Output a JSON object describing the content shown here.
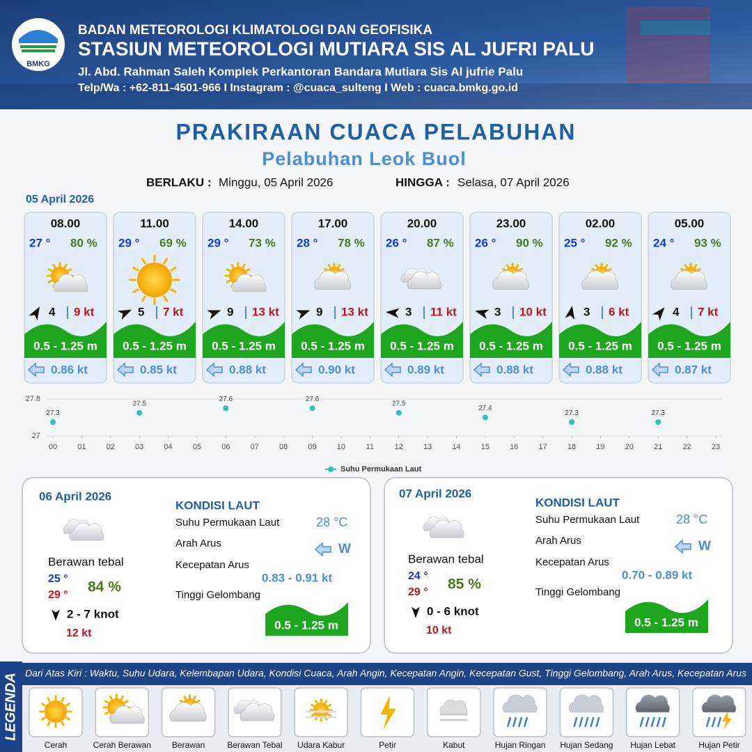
{
  "header": {
    "logo_text": "BMKG",
    "agency": "BADAN METEOROLOGI KLIMATOLOGI DAN GEOFISIKA",
    "station": "STASIUN METEOROLOGI MUTIARA SIS AL JUFRI PALU",
    "address": "Jl. Abd. Rahman Saleh Komplek Perkantoran Bandara Mutiara Sis Al jufrie Palu",
    "contact": "Telp/Wa : +62-811-4501-966  I  Instagram : @cuaca_sulteng  I  Web : cuaca.bmkg.go.id"
  },
  "title": "PRAKIRAAN CUACA PELABUHAN",
  "subtitle": "Pelabuhan Leok Buol",
  "valid": {
    "from_label": "BERLAKU :",
    "from": "Minggu, 05 April 2026",
    "until_label": "HINGGA :",
    "until": "Selasa, 07 April 2026"
  },
  "day1_date": "05 April 2026",
  "cards": [
    {
      "time": "08.00",
      "temp": "27 °",
      "humidity": "80 %",
      "wind": "4",
      "gust": "9 kt",
      "wave": "0.5 - 1.25 m",
      "current": "0.86 kt"
    },
    {
      "time": "11.00",
      "temp": "29 °",
      "humidity": "69 %",
      "wind": "5",
      "gust": "7 kt",
      "wave": "0.5 - 1.25 m",
      "current": "0.85 kt"
    },
    {
      "time": "14.00",
      "temp": "29 °",
      "humidity": "73 %",
      "wind": "9",
      "gust": "13 kt",
      "wave": "0.5 - 1.25 m",
      "current": "0.88 kt"
    },
    {
      "time": "17.00",
      "temp": "28 °",
      "humidity": "78 %",
      "wind": "9",
      "gust": "13 kt",
      "wave": "0.5 - 1.25 m",
      "current": "0.90 kt"
    },
    {
      "time": "20.00",
      "temp": "26 °",
      "humidity": "87 %",
      "wind": "3",
      "gust": "11 kt",
      "wave": "0.5 - 1.25 m",
      "current": "0.89 kt"
    },
    {
      "time": "23.00",
      "temp": "26 °",
      "humidity": "90 %",
      "wind": "3",
      "gust": "10 kt",
      "wave": "0.5 - 1.25 m",
      "current": "0.88 kt"
    },
    {
      "time": "02.00",
      "temp": "25 °",
      "humidity": "92 %",
      "wind": "3",
      "gust": "6 kt",
      "wave": "0.5 - 1.25 m",
      "current": "0.88 kt"
    },
    {
      "time": "05.00",
      "temp": "24 °",
      "humidity": "93 %",
      "wind": "4",
      "gust": "7 kt",
      "wave": "0.5 - 1.25 m",
      "current": "0.87 kt"
    }
  ],
  "chart_data": {
    "type": "scatter",
    "x": [
      0,
      3,
      6,
      9,
      12,
      15,
      18,
      21
    ],
    "series": [
      {
        "name": "Suhu Permukaan Laut",
        "color": "#2cc4b4",
        "values": [
          27.3,
          27.5,
          27.6,
          27.6,
          27.5,
          27.4,
          27.3,
          27.3
        ]
      }
    ],
    "xlim": [
      0,
      23
    ],
    "xticks": [
      {
        "value": 0,
        "label": "00"
      },
      {
        "value": 1,
        "label": "01"
      },
      {
        "value": 2,
        "label": "02"
      },
      {
        "value": 3,
        "label": "03"
      },
      {
        "value": 4,
        "label": "04"
      },
      {
        "value": 5,
        "label": "05"
      },
      {
        "value": 6,
        "label": "06"
      },
      {
        "value": 7,
        "label": "07"
      },
      {
        "value": 8,
        "label": "08"
      },
      {
        "value": 9,
        "label": "09"
      },
      10,
      11,
      12,
      13,
      14,
      15,
      16,
      17,
      18,
      19,
      20,
      21,
      22,
      23
    ],
    "ylim": [
      27,
      27.8
    ],
    "yticks": [
      27,
      27.8
    ],
    "grid": true
  },
  "days": [
    {
      "date": "06 April 2026",
      "condition": "Berawan tebal",
      "temp_min": "25 °",
      "temp_max": "29 °",
      "humidity": "84 %",
      "wind": "2 - 7 knot",
      "gust": "12 kt",
      "sea_title": "KONDISI LAUT",
      "sst_label": "Suhu Permukaan Laut",
      "sst": "28 °C",
      "current_dir_label": "Arah Arus",
      "current_dir": "W",
      "current_speed_label": "Kecepatan Arus",
      "current_speed": "0.83 - 0.91 kt",
      "wave_label": "Tinggi Gelombang",
      "wave": "0.5 - 1.25 m"
    },
    {
      "date": "07 April 2026",
      "condition": "Berawan tebal",
      "temp_min": "24 °",
      "temp_max": "29 °",
      "humidity": "85 %",
      "wind": "0 - 6 knot",
      "gust": "10 kt",
      "sea_title": "KONDISI LAUT",
      "sst_label": "Suhu Permukaan Laut",
      "sst": "28 °C",
      "current_dir_label": "Arah Arus",
      "current_dir": "W",
      "current_speed_label": "Kecepatan Arus",
      "current_speed": "0.70 - 0.89 kt",
      "wave_label": "Tinggi Gelombang",
      "wave": "0.5 - 1.25 m"
    }
  ],
  "legend": {
    "title": "LEGENDA",
    "description": "Dari Atas Kiri : Waktu, Suhu Udara, Kelembapan Udara, Kondisi Cuaca, Arah Angin, Kecepatan Angin, Kecepatan Gust, Tinggi Gelombang, Arah Arus, Kecepatan Arus",
    "items": [
      "Cerah",
      "Cerah Berawan",
      "Berawan",
      "Berawan Tebal",
      "Udara Kabur",
      "Petir",
      "Kabut",
      "Hujan Ringan",
      "Hujan Sedang",
      "Hujan Lebat",
      "Hujan Petir"
    ]
  }
}
